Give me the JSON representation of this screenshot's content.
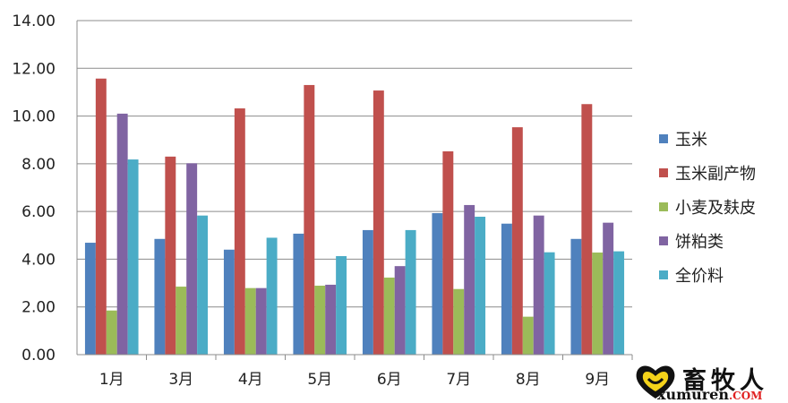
{
  "chart_data": {
    "type": "bar",
    "categories": [
      "1月",
      "3月",
      "4月",
      "5月",
      "6月",
      "7月",
      "8月",
      "9月"
    ],
    "series": [
      {
        "name": "玉米",
        "color": "#4f81bd",
        "values": [
          4.69,
          4.85,
          4.4,
          5.07,
          5.22,
          5.93,
          5.49,
          4.85
        ]
      },
      {
        "name": "玉米副产物",
        "color": "#c0504d",
        "values": [
          11.57,
          8.3,
          10.32,
          11.3,
          11.07,
          8.52,
          9.53,
          10.5
        ]
      },
      {
        "name": "小麦及麸皮",
        "color": "#9bbb59",
        "values": [
          1.85,
          2.85,
          2.79,
          2.89,
          3.23,
          2.75,
          1.59,
          4.28
        ]
      },
      {
        "name": "饼粕类",
        "color": "#8064a2",
        "values": [
          10.1,
          8.02,
          2.79,
          2.93,
          3.71,
          6.27,
          5.83,
          5.53
        ]
      },
      {
        "name": "全价料",
        "color": "#4bacc6",
        "values": [
          8.18,
          5.83,
          4.9,
          4.13,
          5.22,
          5.78,
          4.29,
          4.33
        ]
      }
    ],
    "ylim": [
      0,
      14
    ],
    "yticks": [
      "0.00",
      "2.00",
      "4.00",
      "6.00",
      "8.00",
      "10.00",
      "12.00",
      "14.00"
    ],
    "grid": true,
    "legend_position": "right"
  },
  "logo": {
    "name": "畜牧人",
    "domain": "xumuren",
    "tld": ".COM"
  }
}
